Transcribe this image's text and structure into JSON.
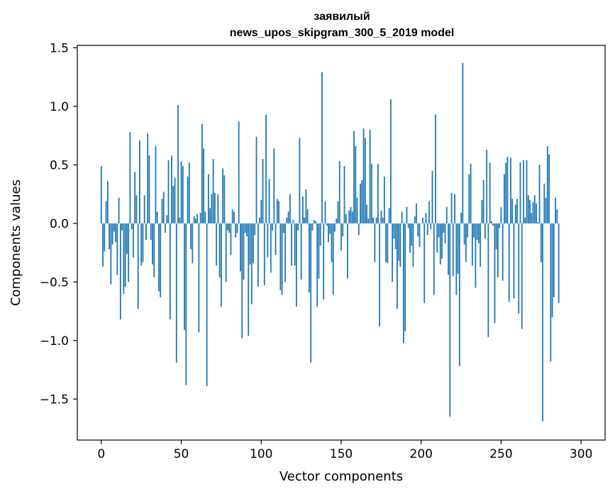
{
  "chart_data": {
    "type": "bar",
    "title": "заявилый",
    "subtitle": "news_upos_skipgram_300_5_2019 model",
    "xlabel": "Vector components",
    "ylabel": "Components values",
    "xlim": [
      -15,
      315
    ],
    "ylim": [
      -1.85,
      1.52
    ],
    "x_ticks": [
      0,
      50,
      100,
      150,
      200,
      250,
      300
    ],
    "x_tick_labels": [
      "0",
      "50",
      "100",
      "150",
      "200",
      "250",
      "300"
    ],
    "y_ticks": [
      -1.5,
      -1.0,
      -0.5,
      0.0,
      0.5,
      1.0,
      1.5
    ],
    "y_tick_labels": [
      "−1.5",
      "−1.0",
      "−0.5",
      "0.0",
      "0.5",
      "1.0",
      "1.5"
    ],
    "grid": false,
    "bar_color": "#1f77b4",
    "values": [
      0.49,
      -0.37,
      -0.24,
      0.19,
      0.36,
      -0.22,
      -0.52,
      -0.18,
      -0.07,
      -0.16,
      -0.44,
      0.22,
      -0.82,
      -0.06,
      -0.6,
      -0.54,
      -0.26,
      -0.5,
      0.78,
      -0.05,
      -0.29,
      0.44,
      0.24,
      -0.73,
      0.71,
      -0.36,
      -0.33,
      0.24,
      -0.14,
      0.77,
      0.58,
      -0.14,
      -0.35,
      -0.46,
      0.66,
      0.1,
      -0.58,
      -0.63,
      0.21,
      0.27,
      -0.08,
      0.07,
      0.54,
      -0.82,
      0.58,
      0.32,
      0.39,
      -1.19,
      1.01,
      0.05,
      0.53,
      0.49,
      -0.91,
      -1.38,
      0.4,
      0.52,
      -0.22,
      -0.34,
      0.06,
      0.04,
      0.08,
      -0.93,
      0.09,
      0.85,
      0.64,
      0.1,
      -1.39,
      0.42,
      0.13,
      0.25,
      0.55,
      0.26,
      -0.36,
      0.25,
      -0.46,
      -0.71,
      0.47,
      0.41,
      -0.5,
      -0.06,
      -0.08,
      -0.27,
      0.12,
      0.1,
      -0.12,
      -0.08,
      0.87,
      -0.41,
      -0.98,
      -0.48,
      -0.08,
      -0.11,
      -0.96,
      -0.35,
      -0.69,
      -0.34,
      -0.1,
      0.74,
      -0.54,
      0.05,
      0.2,
      0.55,
      -0.53,
      0.93,
      -0.29,
      0.38,
      -0.42,
      -0.06,
      0.64,
      -0.27,
      0.21,
      0.19,
      -0.57,
      -0.61,
      -0.08,
      -0.5,
      0.05,
      0.1,
      0.25,
      -0.36,
      0.03,
      -0.36,
      -0.71,
      -0.06,
      0.73,
      -0.48,
      0.23,
      0.05,
      0.29,
      0.12,
      -0.59,
      -1.19,
      -0.06,
      0.03,
      0.02,
      -0.71,
      -0.47,
      -0.19,
      1.29,
      -0.65,
      0.19,
      -0.02,
      -0.16,
      -0.09,
      -0.33,
      -0.61,
      -0.07,
      0.04,
      0.19,
      0.53,
      -0.23,
      -0.11,
      0.49,
      0.08,
      -0.47,
      0.11,
      0.14,
      0.1,
      0.79,
      0.66,
      0.22,
      -0.1,
      0.34,
      0.37,
      0.81,
      0.73,
      0.16,
      0.04,
      0.8,
      0.51,
      0.05,
      -0.33,
      0.05,
      0.51,
      -0.88,
      0.11,
      0.05,
      0.4,
      -0.33,
      -0.34,
      0.13,
      1.06,
      -0.5,
      -0.13,
      -0.22,
      -0.73,
      -0.32,
      -0.37,
      0.1,
      -1.02,
      -0.92,
      0.14,
      -0.04,
      -0.25,
      -0.19,
      -0.37,
      0.06,
      0.17,
      -0.11,
      -0.2,
      0.0,
      0.05,
      -0.68,
      0.09,
      -0.1,
      0.19,
      -0.05,
      0.45,
      -0.61,
      0.93,
      -0.25,
      -0.12,
      -0.35,
      -0.3,
      -0.08,
      -0.17,
      0.14,
      -0.44,
      -1.65,
      0.26,
      -0.45,
      0.25,
      -0.61,
      -0.43,
      -1.22,
      0.09,
      1.37,
      -0.18,
      -0.33,
      -0.12,
      0.42,
      0.51,
      -0.36,
      -0.12,
      -0.55,
      -0.14,
      -0.17,
      -0.37,
      0.2,
      0.37,
      -0.13,
      0.63,
      -0.97,
      0.52,
      0.02,
      -0.02,
      -0.85,
      -0.22,
      -0.46,
      -0.04,
      0.14,
      -0.49,
      0.42,
      0.52,
      0.57,
      -0.67,
      0.56,
      0.21,
      -0.64,
      0.16,
      0.21,
      -0.77,
      0.52,
      -0.9,
      0.54,
      0.05,
      0.54,
      0.24,
      0.2,
      0.09,
      0.18,
      0.24,
      0.17,
      0.01,
      0.5,
      -0.33,
      -1.69,
      0.34,
      0.22,
      0.66,
      0.59,
      -1.18,
      -0.8,
      -0.63,
      0.22,
      0.12,
      -0.68
    ]
  }
}
